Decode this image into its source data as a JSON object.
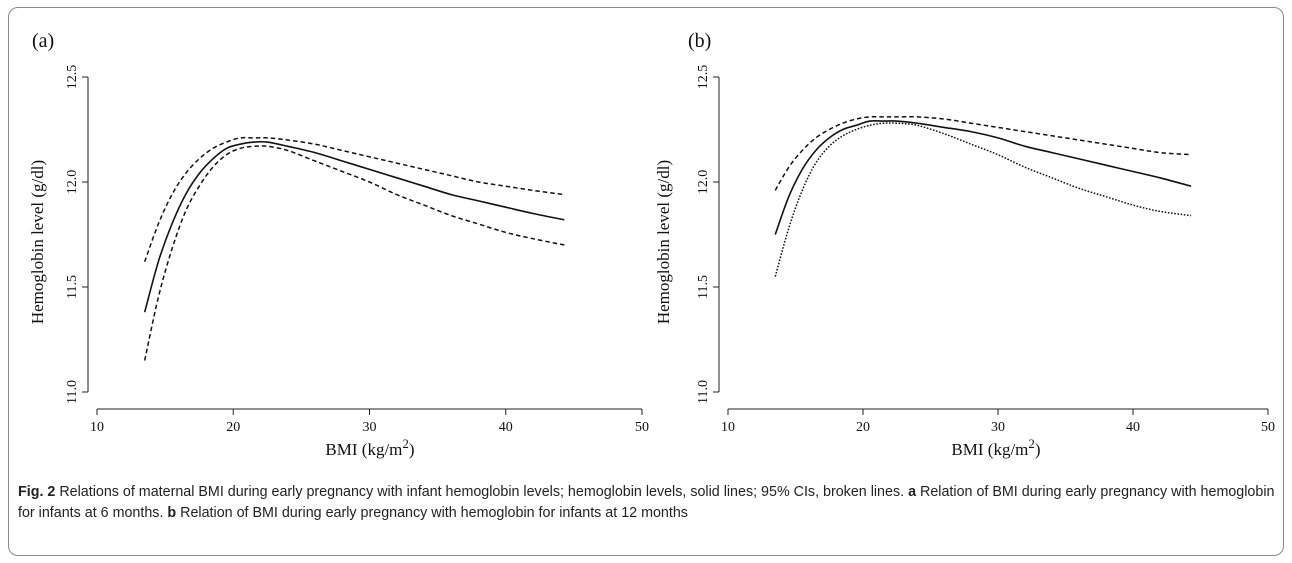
{
  "caption": {
    "fig_label": "Fig. 2",
    "main_text": "Relations of maternal BMI during early pregnancy with infant hemoglobin levels; hemoglobin levels, solid lines; 95% CIs, broken lines.",
    "panel_a_label": "a",
    "panel_a_text": "Relation of BMI during early pregnancy with hemoglobin for infants at 6 months.",
    "panel_b_label": "b",
    "panel_b_text": "Relation of BMI during early pregnancy with hemoglobin for infants at 12 months"
  },
  "chart_data": [
    {
      "type": "line",
      "panel_label": "(a)",
      "xlabel": "BMI (kg/m",
      "xlabel_sup": "2",
      "xlabel_close": ")",
      "ylabel": "Hemoglobin level (g/dl)",
      "xlim": [
        10,
        50
      ],
      "ylim": [
        11.0,
        12.5
      ],
      "x_ticks": [
        10,
        20,
        30,
        40,
        50
      ],
      "y_ticks": [
        "11.0",
        "11.5",
        "12.0",
        "12.5"
      ],
      "grid": false,
      "x": [
        13.5,
        14.5,
        15.5,
        16.5,
        17.5,
        18.5,
        19.5,
        20.5,
        21.5,
        22.5,
        24,
        26,
        28,
        30,
        32,
        34,
        36,
        38,
        40,
        42,
        44.3
      ],
      "series": [
        {
          "style": "solid",
          "values": [
            11.38,
            11.62,
            11.8,
            11.94,
            12.04,
            12.11,
            12.16,
            12.18,
            12.19,
            12.19,
            12.17,
            12.14,
            12.1,
            12.06,
            12.02,
            11.98,
            11.94,
            11.91,
            11.88,
            11.85,
            11.82
          ]
        },
        {
          "style": "dashed",
          "values": [
            11.62,
            11.8,
            11.94,
            12.04,
            12.11,
            12.16,
            12.19,
            12.21,
            12.21,
            12.21,
            12.2,
            12.18,
            12.15,
            12.12,
            12.09,
            12.06,
            12.03,
            12.0,
            11.98,
            11.96,
            11.94
          ]
        },
        {
          "style": "dashed",
          "values": [
            11.15,
            11.45,
            11.68,
            11.86,
            11.98,
            12.07,
            12.13,
            12.16,
            12.17,
            12.17,
            12.15,
            12.1,
            12.05,
            12.0,
            11.94,
            11.89,
            11.84,
            11.8,
            11.76,
            11.73,
            11.7
          ]
        }
      ]
    },
    {
      "type": "line",
      "panel_label": "(b)",
      "xlabel": "BMI (kg/m",
      "xlabel_sup": "2",
      "xlabel_close": ")",
      "ylabel": "Hemoglobin level (g/dl)",
      "xlim": [
        10,
        50
      ],
      "ylim": [
        11.0,
        12.5
      ],
      "x_ticks": [
        10,
        20,
        30,
        40,
        50
      ],
      "y_ticks": [
        "11.0",
        "11.5",
        "12.0",
        "12.5"
      ],
      "grid": false,
      "x": [
        13.5,
        14.5,
        15.5,
        16.5,
        17.5,
        18.5,
        19.5,
        20.5,
        21.5,
        22.5,
        24,
        26,
        28,
        30,
        32,
        34,
        36,
        38,
        40,
        42,
        44.3
      ],
      "series": [
        {
          "style": "solid",
          "values": [
            11.75,
            11.93,
            12.06,
            12.15,
            12.21,
            12.25,
            12.27,
            12.29,
            12.29,
            12.29,
            12.28,
            12.26,
            12.24,
            12.21,
            12.17,
            12.14,
            12.11,
            12.08,
            12.05,
            12.02,
            11.98
          ]
        },
        {
          "style": "dashed",
          "values": [
            11.96,
            12.07,
            12.15,
            12.21,
            12.25,
            12.28,
            12.3,
            12.31,
            12.31,
            12.31,
            12.31,
            12.3,
            12.28,
            12.26,
            12.24,
            12.22,
            12.2,
            12.18,
            12.16,
            12.14,
            12.13
          ]
        },
        {
          "style": "dotted",
          "values": [
            11.55,
            11.78,
            11.96,
            12.09,
            12.17,
            12.22,
            12.25,
            12.27,
            12.28,
            12.28,
            12.27,
            12.23,
            12.18,
            12.13,
            12.07,
            12.02,
            11.97,
            11.93,
            11.89,
            11.86,
            11.84
          ]
        }
      ]
    }
  ]
}
